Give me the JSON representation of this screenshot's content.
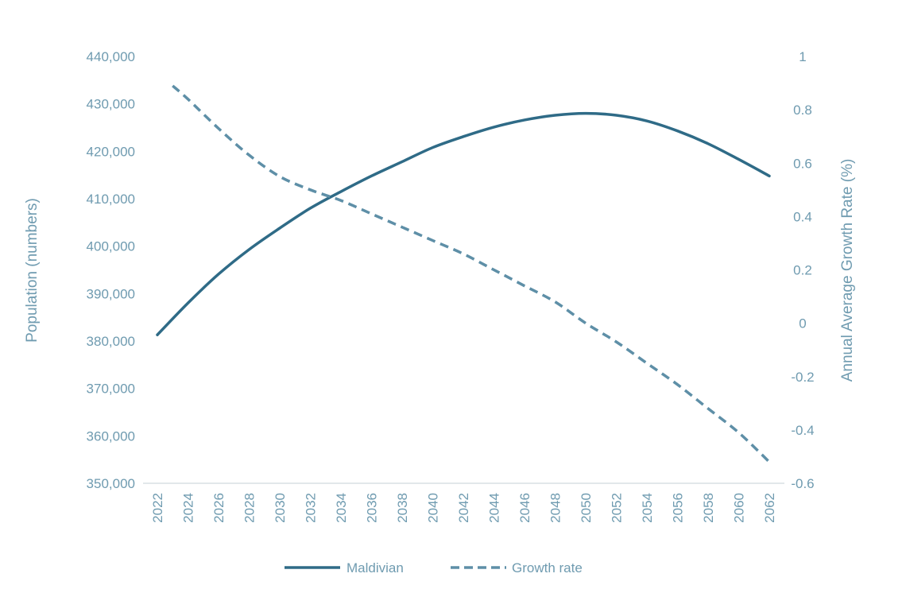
{
  "chart_data": {
    "type": "line",
    "title": "",
    "xlabel": "",
    "ylabel": "Population (numbers)",
    "ylabel_right": "Annual Average Growth Rate (%)",
    "ylim": [
      350000,
      440000
    ],
    "ylim_right": [
      -0.6,
      1
    ],
    "y_ticks": [
      "350,000",
      "360,000",
      "370,000",
      "380,000",
      "390,000",
      "400,000",
      "410,000",
      "420,000",
      "430,000",
      "440,000"
    ],
    "y_right_ticks": [
      "-0.6",
      "-0.4",
      "-0.2",
      "0",
      "0.2",
      "0.4",
      "0.6",
      "0.8",
      "1"
    ],
    "x_ticks": [
      "2022",
      "2024",
      "2026",
      "2028",
      "2030",
      "2032",
      "2034",
      "2036",
      "2038",
      "2040",
      "2042",
      "2044",
      "2046",
      "2048",
      "2050",
      "2052",
      "2054",
      "2056",
      "2058",
      "2060",
      "2062"
    ],
    "grid": false,
    "legend": "bottom",
    "colors": {
      "population": "#2f6b87",
      "growth": "#5e8fa7",
      "text": "#6f9bb0",
      "axis": "#d9dfe3"
    },
    "series": [
      {
        "name": "Maldivian",
        "axis": "left",
        "style": "solid",
        "x": [
          2022,
          2024,
          2026,
          2028,
          2030,
          2032,
          2034,
          2036,
          2038,
          2040,
          2042,
          2044,
          2046,
          2048,
          2050,
          2052,
          2054,
          2056,
          2058,
          2060,
          2062
        ],
        "values": [
          381300,
          388000,
          394100,
          399300,
          403800,
          408000,
          411500,
          414800,
          417800,
          420800,
          423100,
          425100,
          426600,
          427600,
          428000,
          427600,
          426400,
          424300,
          421600,
          418300,
          414800
        ]
      },
      {
        "name": "Growth rate",
        "axis": "right",
        "style": "dashed",
        "x": [
          2023,
          2024,
          2026,
          2028,
          2030,
          2032,
          2034,
          2036,
          2038,
          2040,
          2042,
          2044,
          2046,
          2048,
          2050,
          2052,
          2054,
          2056,
          2058,
          2060,
          2062
        ],
        "values": [
          0.89,
          0.84,
          0.73,
          0.63,
          0.55,
          0.5,
          0.46,
          0.41,
          0.36,
          0.31,
          0.26,
          0.2,
          0.14,
          0.08,
          0.0,
          -0.07,
          -0.15,
          -0.23,
          -0.32,
          -0.41,
          -0.52
        ]
      }
    ]
  }
}
